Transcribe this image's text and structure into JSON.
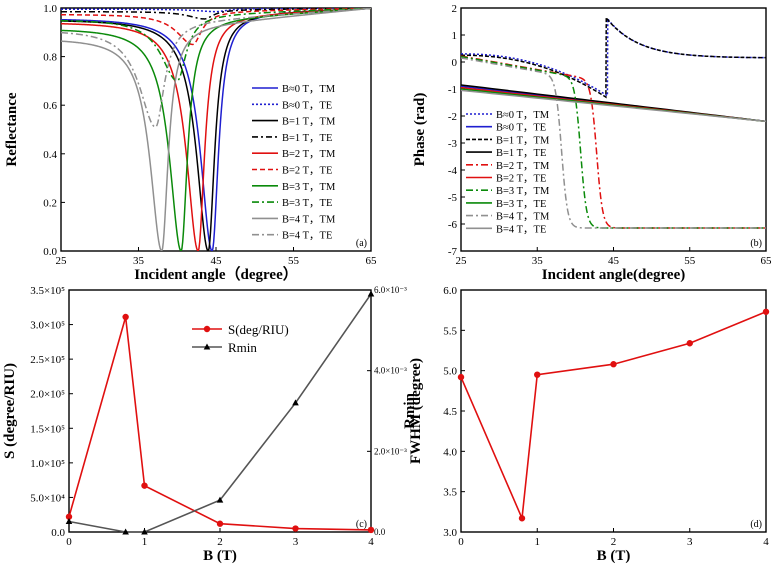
{
  "chart_data": [
    {
      "id": "a",
      "type": "line",
      "panel_label": "(a)",
      "xlabel": "Incident angle（degree）",
      "ylabel": "Reflectance",
      "xlim": [
        25,
        65
      ],
      "ylim": [
        0,
        1.0
      ],
      "xticks": [
        "25",
        "35",
        "45",
        "55",
        "65"
      ],
      "yticks": [
        "0.0",
        "0.2",
        "0.4",
        "0.6",
        "0.8",
        "1.0"
      ],
      "series": [
        {
          "name": "B≈0 T，TM",
          "color": "#1f1fd0",
          "dash": "",
          "min_angle": 44.5,
          "min_value": 0.0,
          "width": 1.8,
          "base": 0.96
        },
        {
          "name": "B≈0 T，TE",
          "color": "#1f1fd0",
          "dash": "2,2",
          "min_angle": 45.0,
          "min_value": 0.985,
          "width": 3,
          "base": 0.995
        },
        {
          "name": "B=1 T，TM",
          "color": "#000000",
          "dash": "",
          "min_angle": 44.0,
          "min_value": 0.0,
          "width": 1.8,
          "base": 0.955
        },
        {
          "name": "B=1 T，TE",
          "color": "#000000",
          "dash": "6,3,2,3",
          "min_angle": 43.5,
          "min_value": 0.955,
          "width": 2.5,
          "base": 0.985
        },
        {
          "name": "B=2 T，TM",
          "color": "#e01010",
          "dash": "",
          "min_angle": 42.7,
          "min_value": 0.0,
          "width": 1.8,
          "base": 0.945
        },
        {
          "name": "B=2 T，TE",
          "color": "#e01010",
          "dash": "5,3",
          "min_angle": 42.0,
          "min_value": 0.85,
          "width": 2.5,
          "base": 0.975
        },
        {
          "name": "B=3 T，TM",
          "color": "#0a8a0a",
          "dash": "",
          "min_angle": 40.5,
          "min_value": 0.0,
          "width": 1.8,
          "base": 0.92
        },
        {
          "name": "B=3 T，TE",
          "color": "#0a8a0a",
          "dash": "7,3,2,3",
          "min_angle": 40.0,
          "min_value": 0.7,
          "width": 2.5,
          "base": 0.955
        },
        {
          "name": "B=4 T，TM",
          "color": "#909090",
          "dash": "",
          "min_angle": 38.0,
          "min_value": 0.0,
          "width": 1.8,
          "base": 0.88
        },
        {
          "name": "B=4 T，TE",
          "color": "#909090",
          "dash": "7,3,2,3",
          "min_angle": 37.2,
          "min_value": 0.51,
          "width": 2.5,
          "base": 0.915
        }
      ]
    },
    {
      "id": "b",
      "type": "line",
      "panel_label": "(b)",
      "xlabel": "Incident angle(degree)",
      "ylabel": "Phase (rad)",
      "xlim": [
        25,
        65
      ],
      "ylim": [
        -7,
        2
      ],
      "xticks": [
        "25",
        "35",
        "45",
        "55",
        "65"
      ],
      "yticks": [
        "-7",
        "-6",
        "-5",
        "-4",
        "-3",
        "-2",
        "-1",
        "0",
        "1",
        "2"
      ],
      "series": [
        {
          "name": "B≈0 T，TM",
          "color": "#1f1fd0",
          "dash": "2,2",
          "kind": "jump_up",
          "start": 0.3,
          "pre": -1.25,
          "jump_angle": 44.2,
          "peak": 1.6,
          "end": 0.15
        },
        {
          "name": "B≈0 T，TE",
          "color": "#1f1fd0",
          "dash": "",
          "kind": "linear",
          "start": -0.9,
          "end": -2.2
        },
        {
          "name": "B=1 T，TM",
          "color": "#000000",
          "dash": "4,2",
          "kind": "jump_up",
          "start": 0.25,
          "pre": -1.3,
          "jump_angle": 44.0,
          "peak": 1.65,
          "end": 0.15
        },
        {
          "name": "B=1 T，TE",
          "color": "#000000",
          "dash": "",
          "kind": "linear",
          "start": -0.85,
          "end": -2.2
        },
        {
          "name": "B=2 T，TM",
          "color": "#e01010",
          "dash": "7,3,2,3",
          "kind": "drop",
          "start": 0.22,
          "drop_angle": 42.8,
          "end": -6.15
        },
        {
          "name": "B=2 T，TE",
          "color": "#e01010",
          "dash": "",
          "kind": "linear",
          "start": -0.95,
          "end": -2.2
        },
        {
          "name": "B=3 T，TM",
          "color": "#0a8a0a",
          "dash": "7,3,2,3",
          "kind": "drop",
          "start": 0.2,
          "drop_angle": 40.7,
          "end": -6.15
        },
        {
          "name": "B=3 T，TE",
          "color": "#0a8a0a",
          "dash": "",
          "kind": "linear",
          "start": -1.0,
          "end": -2.2
        },
        {
          "name": "B=4 T，TM",
          "color": "#909090",
          "dash": "7,3,2,3",
          "kind": "drop",
          "start": 0.15,
          "drop_angle": 38.2,
          "end": -6.15
        },
        {
          "name": "B=4 T，TE",
          "color": "#909090",
          "dash": "",
          "kind": "linear",
          "start": -1.05,
          "end": -2.2
        }
      ]
    },
    {
      "id": "c",
      "type": "line",
      "panel_label": "(c)",
      "xlabel": "B (T)",
      "ylabel": "S (degree/RIU)",
      "ylabel_right": "Rmin",
      "xlim": [
        0,
        4
      ],
      "ylim": [
        0,
        350000
      ],
      "ylim_right": [
        0,
        0.006
      ],
      "xticks": [
        "0",
        "1",
        "2",
        "3",
        "4"
      ],
      "yticks": [
        "0.0",
        "5.0×10⁴",
        "1.0×10⁵",
        "1.5×10⁵",
        "2.0×10⁵",
        "2.5×10⁵",
        "3.0×10⁵",
        "3.5×10⁵"
      ],
      "yticks_right": [
        "0.0",
        "2.0×10⁻³",
        "4.0×10⁻³",
        "6.0×10⁻³"
      ],
      "series": [
        {
          "name": "S(deg/RIU)",
          "color": "#e01010",
          "axis": "left",
          "marker": "circle",
          "x": [
            0,
            0.75,
            1,
            2,
            3,
            4
          ],
          "y": [
            22000,
            311000,
            67000,
            12000,
            5000,
            3000
          ]
        },
        {
          "name": "Rmin",
          "color": "#555555",
          "axis": "right",
          "marker": "triangle",
          "x": [
            0,
            0.75,
            1,
            2,
            3,
            4
          ],
          "y": [
            0.00026,
            0.0,
            0.0,
            0.00079,
            0.0032,
            0.0059
          ]
        }
      ]
    },
    {
      "id": "d",
      "type": "line",
      "panel_label": "(d)",
      "xlabel": "B (T)",
      "ylabel": "FWHM (degree)",
      "xlim": [
        0,
        4
      ],
      "ylim": [
        3.0,
        6.0
      ],
      "xticks": [
        "0",
        "1",
        "2",
        "3",
        "4"
      ],
      "yticks": [
        "3.0",
        "3.5",
        "4.0",
        "4.5",
        "5.0",
        "5.5",
        "6.0"
      ],
      "series": [
        {
          "name": "FWHM",
          "color": "#e01010",
          "marker": "circle",
          "x": [
            0,
            0.8,
            1,
            2,
            3,
            4
          ],
          "y": [
            4.92,
            3.17,
            4.95,
            5.08,
            5.34,
            5.73
          ]
        }
      ]
    }
  ]
}
